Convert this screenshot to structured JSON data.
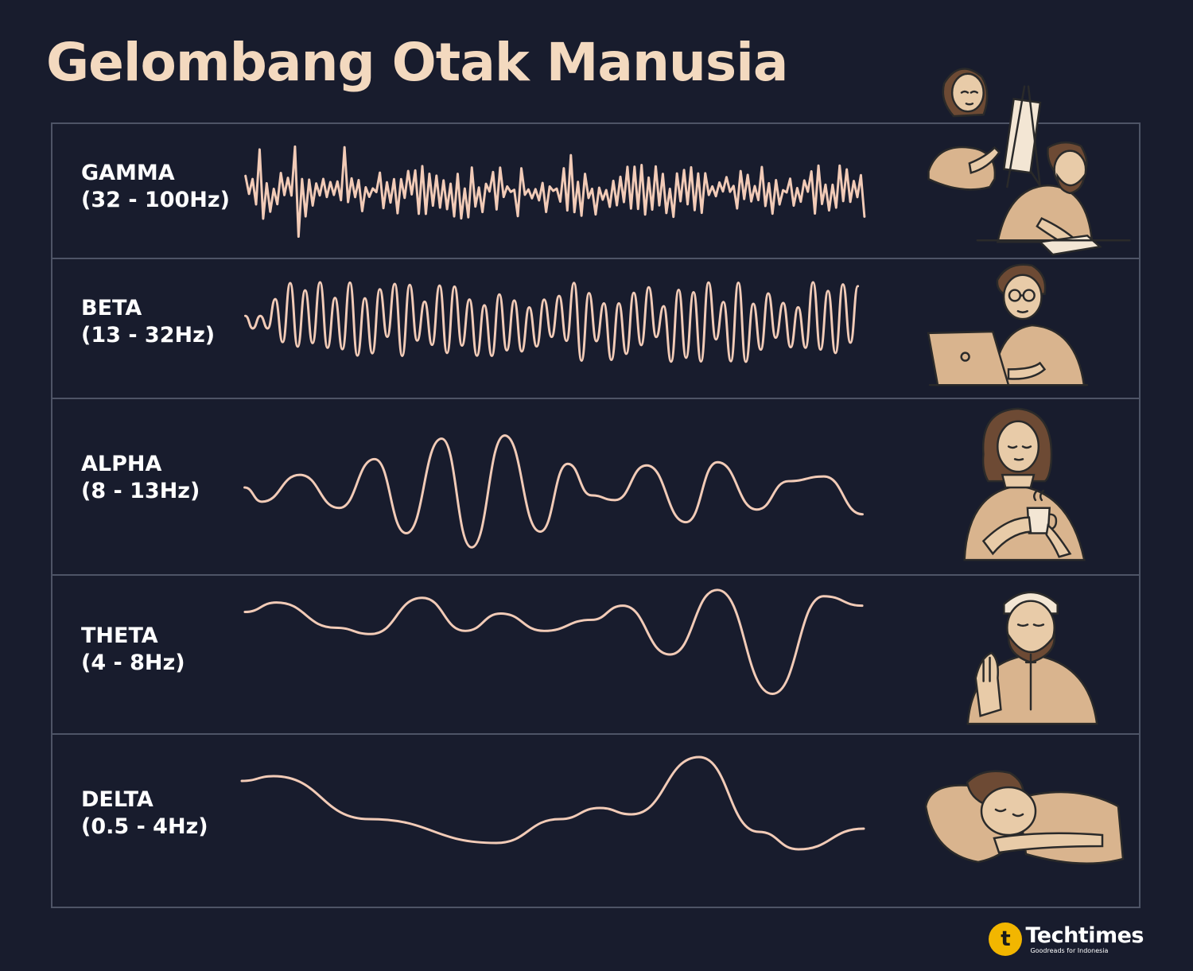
{
  "title": "Gelombang Otak Manusia",
  "waves": [
    {
      "name": "GAMMA",
      "range": "(32 - 100Hz)",
      "activity": "creative-focus",
      "icon": "artist-and-writer-illustration"
    },
    {
      "name": "BETA",
      "range": "(13 - 32Hz)",
      "activity": "working-on-laptop",
      "icon": "laptop-worker-illustration"
    },
    {
      "name": "ALPHA",
      "range": "(8 - 13Hz)",
      "activity": "relaxing-with-drink",
      "icon": "relaxing-woman-illustration"
    },
    {
      "name": "THETA",
      "range": "(4 - 8Hz)",
      "activity": "praying",
      "icon": "praying-man-illustration"
    },
    {
      "name": "DELTA",
      "range": "(0.5 - 4Hz)",
      "activity": "sleeping",
      "icon": "sleeping-person-illustration"
    }
  ],
  "colors": {
    "background": "#181c2d",
    "title": "#f3d9bf",
    "wave": "#f2cbb7",
    "border": "#4e5466",
    "label": "#ffffff",
    "logo_accent": "#f2b600"
  },
  "logo": {
    "mark": "t",
    "name": "Techtimes",
    "tagline": "Goodreads for Indonesia"
  }
}
